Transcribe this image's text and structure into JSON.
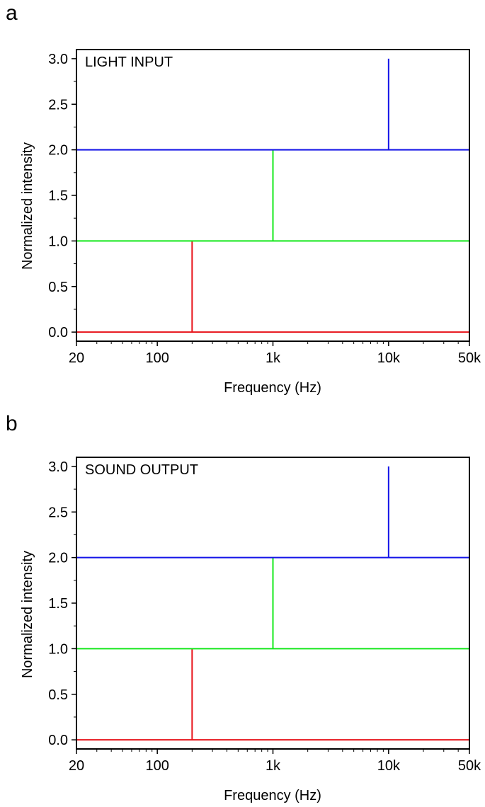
{
  "chart_data": [
    {
      "type": "line",
      "panel_label": "a",
      "annotation": "LIGHT INPUT",
      "xlabel": "Frequency (Hz)",
      "ylabel": "Normalized intensity",
      "xscale": "log",
      "xlim": [
        20,
        50000
      ],
      "ylim": [
        -0.1,
        3.1
      ],
      "x_ticks": [
        20,
        100,
        1000,
        10000,
        50000
      ],
      "x_tick_labels": [
        "20",
        "100",
        "1k",
        "10k",
        "50k"
      ],
      "y_ticks": [
        0,
        0.5,
        1,
        1.5,
        2,
        2.5,
        3
      ],
      "y_tick_labels": [
        "0.0",
        "0.5",
        "1.0",
        "1.5",
        "2.0",
        "2.5",
        "3.0"
      ],
      "grid": false,
      "series": [
        {
          "color": "#e8141b",
          "x": [
            20,
            200,
            200,
            200,
            50000
          ],
          "y": [
            0,
            0,
            1,
            0,
            0
          ]
        },
        {
          "color": "#14e81b",
          "x": [
            20,
            1000,
            1000,
            1000,
            50000
          ],
          "y": [
            1,
            1,
            2,
            1,
            1
          ]
        },
        {
          "color": "#1414e8",
          "x": [
            20,
            10000,
            10000,
            10000,
            50000
          ],
          "y": [
            2,
            2,
            3,
            2,
            2
          ]
        }
      ]
    },
    {
      "type": "line",
      "panel_label": "b",
      "annotation": "SOUND OUTPUT",
      "xlabel": "Frequency (Hz)",
      "ylabel": "Normalized intensity",
      "xscale": "log",
      "xlim": [
        20,
        50000
      ],
      "ylim": [
        -0.1,
        3.1
      ],
      "x_ticks": [
        20,
        100,
        1000,
        10000,
        50000
      ],
      "x_tick_labels": [
        "20",
        "100",
        "1k",
        "10k",
        "50k"
      ],
      "y_ticks": [
        0,
        0.5,
        1,
        1.5,
        2,
        2.5,
        3
      ],
      "y_tick_labels": [
        "0.0",
        "0.5",
        "1.0",
        "1.5",
        "2.0",
        "2.5",
        "3.0"
      ],
      "grid": false,
      "series": [
        {
          "color": "#e8141b",
          "x": [
            20,
            200,
            200,
            200,
            50000
          ],
          "y": [
            0,
            0,
            1,
            0,
            0
          ]
        },
        {
          "color": "#14e81b",
          "x": [
            20,
            1000,
            1000,
            1000,
            50000
          ],
          "y": [
            1,
            1,
            2,
            1,
            1
          ]
        },
        {
          "color": "#1414e8",
          "x": [
            20,
            10000,
            10000,
            10000,
            50000
          ],
          "y": [
            2,
            2,
            3,
            2,
            2
          ]
        }
      ]
    }
  ]
}
